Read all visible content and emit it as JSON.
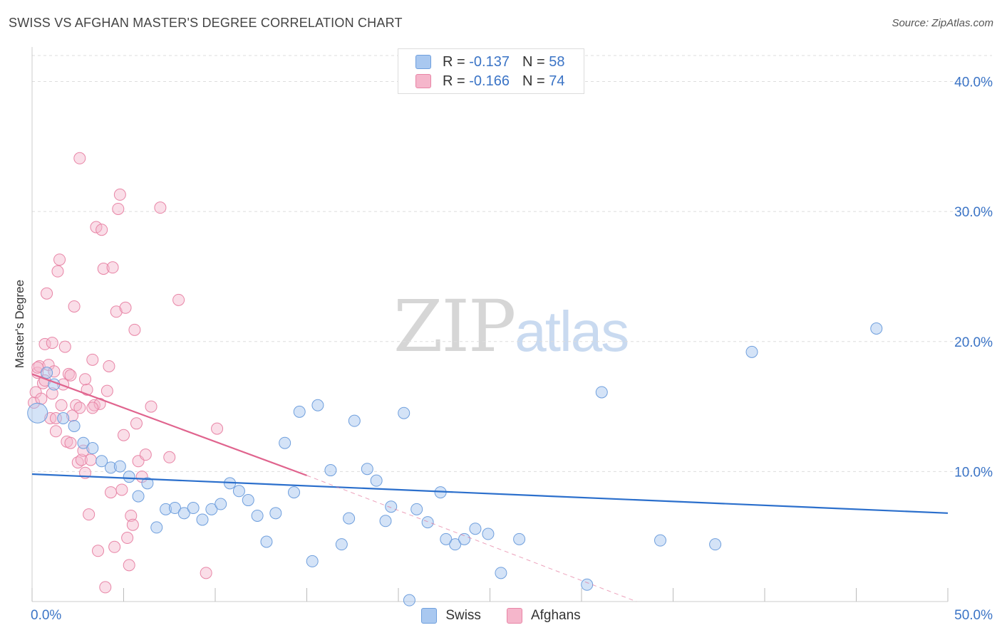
{
  "header": {
    "title": "SWISS VS AFGHAN MASTER'S DEGREE CORRELATION CHART",
    "source": "Source: ZipAtlas.com"
  },
  "watermark": {
    "part1": "ZIP",
    "part2": "atlas"
  },
  "legend_top": [
    {
      "r_label": "R =",
      "r_value": "-0.137",
      "n_label": "N =",
      "n_value": "58",
      "color": "#a9c8f0"
    },
    {
      "r_label": "R =",
      "r_value": "-0.166",
      "n_label": "N =",
      "n_value": "74",
      "color": "#f5b6cb"
    }
  ],
  "legend_bottom": [
    {
      "label": "Swiss",
      "color": "#a9c8f0"
    },
    {
      "label": "Afghans",
      "color": "#f5b6cb"
    }
  ],
  "colors": {
    "swiss_fill": "#a9c8f0",
    "swiss_stroke": "#6f9fdd",
    "swiss_line": "#2b6fcc",
    "afghan_fill": "#f5b6cb",
    "afghan_stroke": "#e885a6",
    "afghan_line": "#e0648e",
    "tick_text": "#3b74c6",
    "grid": "#dddddd"
  },
  "chart_data": {
    "type": "scatter",
    "title": "SWISS VS AFGHAN MASTER'S DEGREE CORRELATION CHART",
    "xlabel": "",
    "ylabel": "Master's Degree",
    "xlim": [
      0,
      50
    ],
    "ylim": [
      0,
      42
    ],
    "x_tick_labels": [
      {
        "value": 0,
        "label": "0.0%"
      },
      {
        "value": 50,
        "label": "50.0%"
      }
    ],
    "y_tick_labels": [
      {
        "value": 10,
        "label": "10.0%"
      },
      {
        "value": 20,
        "label": "20.0%"
      },
      {
        "value": 30,
        "label": "30.0%"
      },
      {
        "value": 40,
        "label": "40.0%"
      }
    ],
    "grid": true,
    "legend_position": "top-center",
    "series": [
      {
        "name": "Swiss",
        "r": -0.137,
        "n": 58,
        "trend": {
          "x": [
            0,
            50
          ],
          "y": [
            9.8,
            6.8
          ]
        },
        "points": [
          [
            0.3,
            14.5
          ],
          [
            0.8,
            17.6
          ],
          [
            1.2,
            16.7
          ],
          [
            1.7,
            14.1
          ],
          [
            2.3,
            13.5
          ],
          [
            2.8,
            12.2
          ],
          [
            3.3,
            11.8
          ],
          [
            3.8,
            10.8
          ],
          [
            4.3,
            10.3
          ],
          [
            4.8,
            10.4
          ],
          [
            5.3,
            9.6
          ],
          [
            5.8,
            8.1
          ],
          [
            6.3,
            9.1
          ],
          [
            6.8,
            5.7
          ],
          [
            7.3,
            7.1
          ],
          [
            7.8,
            7.2
          ],
          [
            8.3,
            6.8
          ],
          [
            8.8,
            7.2
          ],
          [
            9.3,
            6.3
          ],
          [
            9.8,
            7.1
          ],
          [
            10.3,
            7.5
          ],
          [
            10.8,
            9.1
          ],
          [
            11.3,
            8.5
          ],
          [
            11.8,
            7.8
          ],
          [
            12.3,
            6.6
          ],
          [
            12.8,
            4.6
          ],
          [
            13.3,
            6.8
          ],
          [
            13.8,
            12.2
          ],
          [
            14.3,
            8.4
          ],
          [
            14.6,
            14.6
          ],
          [
            15.3,
            3.1
          ],
          [
            15.6,
            15.1
          ],
          [
            16.3,
            10.1
          ],
          [
            16.9,
            4.4
          ],
          [
            17.3,
            6.4
          ],
          [
            17.6,
            13.9
          ],
          [
            18.3,
            10.2
          ],
          [
            18.8,
            9.3
          ],
          [
            19.3,
            6.2
          ],
          [
            19.6,
            7.3
          ],
          [
            20.3,
            14.5
          ],
          [
            20.6,
            0.1
          ],
          [
            21.0,
            7.1
          ],
          [
            21.6,
            6.1
          ],
          [
            22.3,
            8.4
          ],
          [
            22.6,
            4.8
          ],
          [
            23.1,
            4.4
          ],
          [
            23.6,
            4.8
          ],
          [
            24.2,
            5.6
          ],
          [
            24.9,
            5.2
          ],
          [
            25.6,
            2.2
          ],
          [
            26.6,
            4.8
          ],
          [
            30.3,
            1.3
          ],
          [
            31.1,
            16.1
          ],
          [
            34.3,
            4.7
          ],
          [
            37.3,
            4.4
          ],
          [
            39.3,
            19.2
          ],
          [
            46.1,
            21.0
          ]
        ]
      },
      {
        "name": "Afghans",
        "r": -0.166,
        "n": 74,
        "trend": {
          "x": [
            0,
            15
          ],
          "y": [
            17.5,
            9.7
          ]
        },
        "trend_extension": {
          "x": [
            15,
            33
          ],
          "y": [
            9.7,
            0
          ]
        },
        "points": [
          [
            0.1,
            15.3
          ],
          [
            0.2,
            16.1
          ],
          [
            0.3,
            17.6
          ],
          [
            0.4,
            18.1
          ],
          [
            0.5,
            15.6
          ],
          [
            0.6,
            16.8
          ],
          [
            0.7,
            19.8
          ],
          [
            0.8,
            23.7
          ],
          [
            0.9,
            18.2
          ],
          [
            1.0,
            14.1
          ],
          [
            1.1,
            19.9
          ],
          [
            1.2,
            17.7
          ],
          [
            1.3,
            13.1
          ],
          [
            1.4,
            25.4
          ],
          [
            1.5,
            26.3
          ],
          [
            1.6,
            15.1
          ],
          [
            1.7,
            16.7
          ],
          [
            1.8,
            19.6
          ],
          [
            1.9,
            12.3
          ],
          [
            2.0,
            17.5
          ],
          [
            2.1,
            17.4
          ],
          [
            2.2,
            14.3
          ],
          [
            2.3,
            22.7
          ],
          [
            2.4,
            15.1
          ],
          [
            2.5,
            10.7
          ],
          [
            2.6,
            14.9
          ],
          [
            2.7,
            10.9
          ],
          [
            2.8,
            11.6
          ],
          [
            2.9,
            9.9
          ],
          [
            3.0,
            16.3
          ],
          [
            3.1,
            6.7
          ],
          [
            3.2,
            10.9
          ],
          [
            3.3,
            18.6
          ],
          [
            3.4,
            15.1
          ],
          [
            3.5,
            28.8
          ],
          [
            3.6,
            3.9
          ],
          [
            3.7,
            15.2
          ],
          [
            3.8,
            28.6
          ],
          [
            3.9,
            25.6
          ],
          [
            4.0,
            1.1
          ],
          [
            4.1,
            16.2
          ],
          [
            4.2,
            18.1
          ],
          [
            4.3,
            8.4
          ],
          [
            4.4,
            25.7
          ],
          [
            4.5,
            4.2
          ],
          [
            4.6,
            22.3
          ],
          [
            4.7,
            30.2
          ],
          [
            4.8,
            31.3
          ],
          [
            4.9,
            8.6
          ],
          [
            5.0,
            12.8
          ],
          [
            5.1,
            22.6
          ],
          [
            5.2,
            4.9
          ],
          [
            5.3,
            2.8
          ],
          [
            5.4,
            6.6
          ],
          [
            5.5,
            5.9
          ],
          [
            5.6,
            20.9
          ],
          [
            5.7,
            13.7
          ],
          [
            5.8,
            10.8
          ],
          [
            6.0,
            9.6
          ],
          [
            6.2,
            11.3
          ],
          [
            6.5,
            15.0
          ],
          [
            7.0,
            30.3
          ],
          [
            7.5,
            11.1
          ],
          [
            8.0,
            23.2
          ],
          [
            9.5,
            2.2
          ],
          [
            10.1,
            13.3
          ],
          [
            2.6,
            34.1
          ],
          [
            1.3,
            14.1
          ],
          [
            0.3,
            18.0
          ],
          [
            0.7,
            17.0
          ],
          [
            1.1,
            16.0
          ],
          [
            2.9,
            17.1
          ],
          [
            3.3,
            14.9
          ],
          [
            2.1,
            12.2
          ]
        ]
      }
    ]
  }
}
